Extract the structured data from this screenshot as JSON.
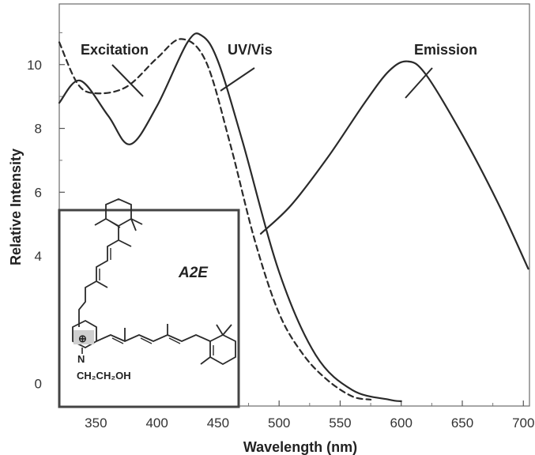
{
  "chart_data": {
    "type": "line",
    "xlabel": "Wavelength (nm)",
    "ylabel": "Relative Intensity",
    "xlim": [
      320,
      705
    ],
    "ylim": [
      -0.7,
      11.9
    ],
    "x_ticks": [
      350,
      400,
      450,
      500,
      550,
      600,
      650,
      700
    ],
    "y_ticks": [
      0,
      4,
      6,
      8,
      10
    ],
    "grid": false,
    "legend": "none",
    "series": [
      {
        "name": "Excitation",
        "style": "dashed",
        "x": [
          320,
          335,
          350,
          375,
          400,
          420,
          440,
          460,
          480,
          500,
          520,
          540,
          560,
          575
        ],
        "y": [
          10.7,
          9.4,
          9.1,
          9.3,
          10.2,
          10.8,
          10.1,
          7.5,
          4.5,
          2.2,
          0.9,
          0.1,
          -0.4,
          -0.5
        ]
      },
      {
        "name": "UV/Vis",
        "style": "solid",
        "x": [
          320,
          337,
          360,
          378,
          400,
          425,
          437,
          450,
          470,
          500,
          530,
          560,
          590,
          600
        ],
        "y": [
          8.8,
          9.5,
          8.4,
          7.5,
          8.7,
          10.7,
          10.9,
          10.1,
          7.6,
          3.5,
          0.9,
          -0.2,
          -0.5,
          -0.55
        ]
      },
      {
        "name": "Emission",
        "style": "solid",
        "x": [
          485,
          510,
          540,
          570,
          590,
          605,
          620,
          650,
          680,
          704
        ],
        "y": [
          4.7,
          5.6,
          7.1,
          8.8,
          9.8,
          10.1,
          9.7,
          7.8,
          5.6,
          3.6
        ]
      }
    ],
    "annotations": [
      "Excitation",
      "UV/Vis",
      "Emission"
    ]
  },
  "inset": {
    "name": "A2E",
    "n_label": "N",
    "substituent": "CH₂CH₂OH",
    "charge": "⊕"
  },
  "colors": {
    "line": "#2a2a2a",
    "frame": "#555555",
    "inset_frame": "#444444"
  }
}
